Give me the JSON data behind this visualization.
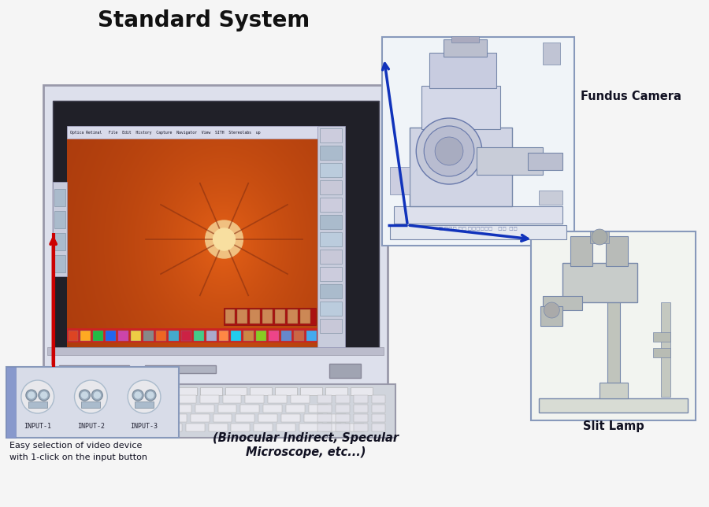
{
  "title": "Standard System",
  "title_fontsize": 20,
  "bg_color": "#f5f5f5",
  "fundus_camera_label": "Fundus Camera",
  "slit_lamp_label": "Slit Lamp",
  "binocular_line1": "(Binocular Indirect, Specular",
  "binocular_line2": "Microscope, etc...)",
  "input_label_line1": "Easy selection of video device",
  "input_label_line2": "with 1-click on the input button",
  "input_buttons": [
    "INPUT-1",
    "INPUT-2",
    "INPUT-3"
  ],
  "arrow_color_red": "#cc0000",
  "arrow_color_blue": "#1133bb",
  "monitor_outer": "#dde0ea",
  "monitor_edge": "#999aaa",
  "screen_dark": "#181818",
  "fundus_orange_outer": "#b84020",
  "fundus_orange_inner": "#d06030",
  "fundus_bright": "#e8a060",
  "keyboard_bg": "#c8ccd4",
  "input_box_bg": "#d8dce8",
  "input_box_edge": "#8899bb"
}
